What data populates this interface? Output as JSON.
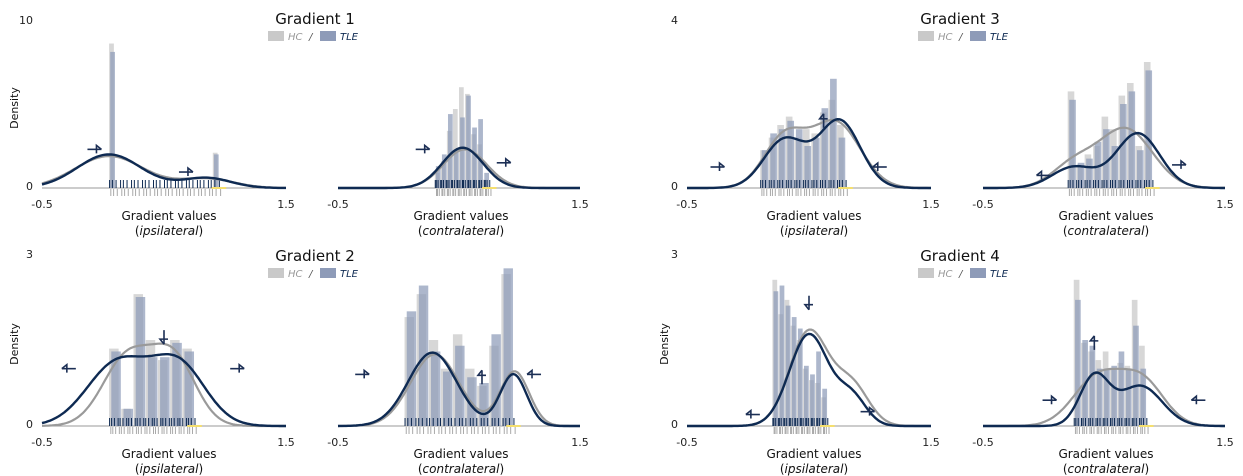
{
  "colors": {
    "hc": "#c9c9c9",
    "tle": "#8e9bb8",
    "hc_curve": "#9a9a9a",
    "tle_curve": "#0e2a52",
    "arrow": "#1c2f55",
    "axis": "#999999",
    "highlight": "#f5df6e"
  },
  "legend": {
    "hc": "HC",
    "sep": "/",
    "tle": "TLE"
  },
  "chart_data": [
    {
      "type": "histogram-density",
      "gradient": "Gradient 1",
      "title": "Gradient 1",
      "show_legend": true,
      "ylabel": "Density",
      "ylim": [
        0,
        10
      ],
      "ytick_labels": [
        "0",
        "10"
      ],
      "xlim": [
        -0.5,
        1.5
      ],
      "xtick_labels": [
        "-0.5",
        "1.5"
      ],
      "panels": [
        {
          "side": "ipsilateral",
          "xlabel": "Gradient values",
          "xsub_open": "(",
          "xsub": "ipsilateral",
          "xsub_close": ")",
          "bin_start": 0.05,
          "bin_width": 0.05,
          "hc": [
            8.6,
            0,
            0,
            0,
            0,
            0,
            0,
            0,
            0,
            0,
            0,
            0,
            0,
            0,
            0,
            0,
            0,
            2.1
          ],
          "tle": [
            8.1,
            0,
            0,
            0,
            0,
            0,
            0,
            0,
            0,
            0,
            0,
            0,
            0,
            0,
            0,
            0,
            0,
            2.0
          ],
          "hc_kde": [
            [
              0.05,
              0.28,
              1.9
            ],
            [
              0.85,
              0.22,
              0.55
            ]
          ],
          "tle_kde": [
            [
              0.05,
              0.26,
              2.0
            ],
            [
              0.85,
              0.2,
              0.6
            ]
          ],
          "arrows": [
            {
              "x": -0.07,
              "y": 2.3,
              "dir": "right"
            },
            {
              "x": 0.68,
              "y": 0.95,
              "dir": "right"
            }
          ]
        },
        {
          "side": "contralateral",
          "xlabel": "Gradient values",
          "xsub_open": "(",
          "xsub": "contralateral",
          "xsub_close": ")",
          "bin_start": 0.3,
          "bin_width": 0.05,
          "hc": [
            0.9,
            1.6,
            3.4,
            4.7,
            6.0,
            5.6,
            3.2,
            2.6,
            0.5
          ],
          "tle": [
            1.3,
            2.0,
            4.4,
            2.3,
            4.2,
            5.5,
            3.6,
            4.1,
            0.9
          ],
          "hc_kde": [
            [
              0.55,
              0.18,
              2.3
            ]
          ],
          "tle_kde": [
            [
              0.53,
              0.17,
              2.4
            ]
          ],
          "arrows": [
            {
              "x": 0.2,
              "y": 2.3,
              "dir": "right"
            },
            {
              "x": 0.87,
              "y": 1.5,
              "dir": "right"
            }
          ]
        }
      ]
    },
    {
      "type": "histogram-density",
      "gradient": "Gradient 2",
      "title": "Gradient 2",
      "show_legend": true,
      "ylabel": "Density",
      "ylim": [
        0,
        3
      ],
      "ytick_labels": [
        "0",
        "3"
      ],
      "xlim": [
        -0.5,
        1.5
      ],
      "xtick_labels": [
        "-0.5",
        "1.5"
      ],
      "panels": [
        {
          "side": "ipsilateral",
          "xlabel": "Gradient values",
          "xsub_open": "(",
          "xsub": "ipsilateral",
          "xsub_close": ")",
          "bin_start": 0.05,
          "bin_width": 0.1,
          "hc": [
            1.35,
            0.3,
            2.3,
            1.5,
            1.15,
            1.5,
            1.35
          ],
          "tle": [
            1.3,
            0.3,
            2.25,
            1.2,
            1.2,
            1.45,
            1.3
          ],
          "hc_kde": [
            [
              0.2,
              0.2,
              1.2
            ],
            [
              0.58,
              0.18,
              1.15
            ]
          ],
          "tle_kde": [
            [
              0.12,
              0.25,
              1.1
            ],
            [
              0.62,
              0.22,
              1.05
            ]
          ],
          "arrows": [
            {
              "x": -0.28,
              "y": 1.0,
              "dir": "left"
            },
            {
              "x": 0.5,
              "y": 1.55,
              "dir": "down"
            },
            {
              "x": 1.1,
              "y": 1.0,
              "dir": "right"
            }
          ]
        },
        {
          "side": "contralateral",
          "xlabel": "Gradient values",
          "xsub_open": "(",
          "xsub": "contralateral",
          "xsub_close": ")",
          "bin_start": 0.05,
          "bin_width": 0.1,
          "hc": [
            1.9,
            2.3,
            1.5,
            1.0,
            1.6,
            1.0,
            0.7,
            1.4,
            2.65
          ],
          "tle": [
            2.0,
            2.45,
            1.3,
            0.95,
            1.4,
            0.85,
            0.75,
            1.6,
            2.75
          ],
          "hc_kde": [
            [
              0.3,
              0.2,
              1.25
            ],
            [
              0.96,
              0.12,
              0.95
            ]
          ],
          "tle_kde": [
            [
              0.28,
              0.2,
              1.28
            ],
            [
              0.95,
              0.11,
              0.9
            ]
          ],
          "arrows": [
            {
              "x": -0.3,
              "y": 0.9,
              "dir": "right"
            },
            {
              "x": 0.69,
              "y": 0.85,
              "dir": "up"
            },
            {
              "x": 1.12,
              "y": 0.9,
              "dir": "left"
            }
          ]
        }
      ]
    },
    {
      "type": "histogram-density",
      "gradient": "Gradient 3",
      "title": "Gradient 3",
      "show_legend": true,
      "ylabel": "",
      "ylim": [
        0,
        4
      ],
      "ytick_labels": [
        "0",
        "4"
      ],
      "xlim": [
        -0.5,
        1.5
      ],
      "xtick_labels": [
        "-0.5",
        "1.5"
      ],
      "panels": [
        {
          "side": "ipsilateral",
          "xlabel": "Gradient values",
          "xsub_open": "(",
          "xsub": "ipsilateral",
          "xsub_close": ")",
          "bin_start": 0.1,
          "bin_width": 0.07,
          "hc": [
            0.9,
            1.2,
            1.5,
            1.7,
            1.2,
            1.4,
            1.3,
            1.8,
            2.1,
            1.5
          ],
          "tle": [
            0.9,
            1.3,
            1.4,
            1.6,
            1.4,
            1.0,
            1.2,
            1.9,
            2.6,
            1.2
          ],
          "hc_kde": [
            [
              0.3,
              0.17,
              1.2
            ],
            [
              0.72,
              0.2,
              1.55
            ]
          ],
          "tle_kde": [
            [
              0.3,
              0.17,
              1.15
            ],
            [
              0.75,
              0.17,
              1.6
            ]
          ],
          "arrows": [
            {
              "x": -0.25,
              "y": 0.5,
              "dir": "right"
            },
            {
              "x": 0.62,
              "y": 1.6,
              "dir": "up"
            },
            {
              "x": 1.08,
              "y": 0.5,
              "dir": "left"
            }
          ]
        },
        {
          "side": "contralateral",
          "xlabel": "Gradient values",
          "xsub_open": "(",
          "xsub": "contralateral",
          "xsub_close": ")",
          "bin_start": 0.2,
          "bin_width": 0.07,
          "hc": [
            2.3,
            0.5,
            0.8,
            1.0,
            1.7,
            1.4,
            2.2,
            2.5,
            1.0,
            3.0
          ],
          "tle": [
            2.1,
            0.6,
            0.7,
            1.1,
            1.4,
            1.0,
            2.0,
            2.3,
            0.9,
            2.8
          ],
          "hc_kde": [
            [
              0.25,
              0.18,
              0.55
            ],
            [
              0.68,
              0.22,
              1.4
            ]
          ],
          "tle_kde": [
            [
              0.25,
              0.18,
              0.5
            ],
            [
              0.78,
              0.18,
              1.3
            ]
          ],
          "arrows": [
            {
              "x": 0.0,
              "y": 0.3,
              "dir": "left"
            },
            {
              "x": 1.12,
              "y": 0.55,
              "dir": "right"
            }
          ]
        }
      ]
    },
    {
      "type": "histogram-density",
      "gradient": "Gradient 4",
      "title": "Gradient 4",
      "show_legend": true,
      "ylabel": "Density",
      "ylim": [
        0,
        3
      ],
      "ytick_labels": [
        "0",
        "3"
      ],
      "xlim": [
        -0.5,
        1.5
      ],
      "xtick_labels": [
        "-0.5",
        "1.5"
      ],
      "panels": [
        {
          "side": "ipsilateral",
          "xlabel": "Gradient values",
          "xsub_open": "(",
          "xsub": "ipsilateral",
          "xsub_close": ")",
          "bin_start": 0.2,
          "bin_width": 0.05,
          "hc": [
            2.55,
            1.95,
            2.2,
            1.75,
            1.5,
            1.0,
            0.8,
            0.75,
            0.5
          ],
          "tle": [
            2.35,
            2.45,
            2.1,
            1.9,
            1.7,
            1.05,
            0.9,
            1.3,
            0.65
          ],
          "hc_kde": [
            [
              0.5,
              0.16,
              1.65
            ],
            [
              0.85,
              0.14,
              0.7
            ]
          ],
          "tle_kde": [
            [
              0.5,
              0.16,
              1.6
            ],
            [
              0.85,
              0.12,
              0.5
            ]
          ],
          "arrows": [
            {
              "x": 0.04,
              "y": 0.2,
              "dir": "left"
            },
            {
              "x": 0.5,
              "y": 2.15,
              "dir": "down"
            },
            {
              "x": 0.98,
              "y": 0.25,
              "dir": "right"
            }
          ]
        },
        {
          "side": "contralateral",
          "xlabel": "Gradient values",
          "xsub_open": "(",
          "xsub": "contralateral",
          "xsub_close": ")",
          "bin_start": 0.25,
          "bin_width": 0.06,
          "hc": [
            2.55,
            1.45,
            1.3,
            1.15,
            1.3,
            1.0,
            1.1,
            1.05,
            2.2,
            1.4
          ],
          "tle": [
            2.2,
            1.5,
            1.4,
            1.0,
            1.0,
            1.05,
            1.3,
            1.0,
            1.75,
            1.0
          ],
          "hc_kde": [
            [
              0.45,
              0.2,
              0.85
            ],
            [
              0.82,
              0.18,
              0.75
            ]
          ],
          "tle_kde": [
            [
              0.42,
              0.12,
              0.85
            ],
            [
              0.8,
              0.18,
              0.7
            ]
          ],
          "arrows": [
            {
              "x": 0.05,
              "y": 0.45,
              "dir": "right"
            },
            {
              "x": 0.42,
              "y": 1.45,
              "dir": "up"
            },
            {
              "x": 1.28,
              "y": 0.45,
              "dir": "left"
            }
          ]
        }
      ]
    }
  ]
}
